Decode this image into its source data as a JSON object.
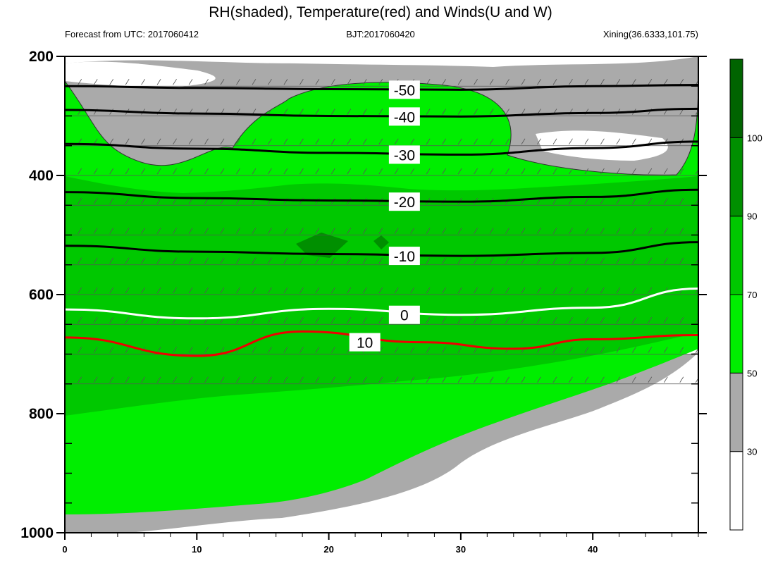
{
  "chart_data": {
    "type": "heatmap",
    "title": "RH(shaded), Temperature(red) and Winds(U and W)",
    "subtitle_left": "Forecast from UTC: 2017060412",
    "subtitle_center": "BJT:2017060420",
    "subtitle_right": "Xining(36.6333,101.75)",
    "xlabel": "",
    "ylabel": "",
    "xlim": [
      0,
      48
    ],
    "ylim": [
      1000,
      200
    ],
    "x_ticks": [
      0,
      10,
      20,
      30,
      40
    ],
    "y_ticks": [
      200,
      400,
      600,
      800,
      1000
    ],
    "colorbar": {
      "ticks": [
        30,
        50,
        70,
        90,
        100
      ],
      "levels": [
        {
          "from": 0,
          "to": 30,
          "color": "#ffffff"
        },
        {
          "from": 30,
          "to": 50,
          "color": "#aaaaaa"
        },
        {
          "from": 50,
          "to": 70,
          "color": "#00ee00"
        },
        {
          "from": 70,
          "to": 90,
          "color": "#00c800"
        },
        {
          "from": 90,
          "to": 100,
          "color": "#008f00"
        },
        {
          "from": 100,
          "to": 110,
          "color": "#006400"
        }
      ]
    },
    "temperature_isotherms": [
      {
        "value": -50,
        "color": "#000000",
        "label": "-50",
        "points": [
          [
            0,
            250
          ],
          [
            10,
            253
          ],
          [
            20,
            255
          ],
          [
            30,
            256
          ],
          [
            40,
            250
          ],
          [
            48,
            248
          ]
        ]
      },
      {
        "value": -40,
        "color": "#000000",
        "label": "-40",
        "points": [
          [
            0,
            290
          ],
          [
            10,
            296
          ],
          [
            20,
            300
          ],
          [
            30,
            301
          ],
          [
            40,
            295
          ],
          [
            48,
            288
          ]
        ]
      },
      {
        "value": -30,
        "color": "#000000",
        "label": "-30",
        "points": [
          [
            0,
            347
          ],
          [
            10,
            355
          ],
          [
            20,
            362
          ],
          [
            30,
            365
          ],
          [
            40,
            354
          ],
          [
            48,
            343
          ]
        ]
      },
      {
        "value": -20,
        "color": "#000000",
        "label": "-20",
        "points": [
          [
            0,
            428
          ],
          [
            10,
            438
          ],
          [
            20,
            442
          ],
          [
            30,
            444
          ],
          [
            40,
            436
          ],
          [
            48,
            424
          ]
        ]
      },
      {
        "value": -10,
        "color": "#000000",
        "label": "-10",
        "points": [
          [
            0,
            518
          ],
          [
            10,
            528
          ],
          [
            20,
            532
          ],
          [
            30,
            535
          ],
          [
            40,
            530
          ],
          [
            48,
            512
          ]
        ]
      },
      {
        "value": 0,
        "color": "#ffffff",
        "label": "0",
        "points": [
          [
            0,
            625
          ],
          [
            10,
            640
          ],
          [
            20,
            624
          ],
          [
            30,
            634
          ],
          [
            40,
            622
          ],
          [
            48,
            590
          ]
        ]
      },
      {
        "value": 10,
        "color": "#ee0000",
        "label": "10",
        "points": [
          [
            0,
            672
          ],
          [
            10,
            703
          ],
          [
            18,
            662
          ],
          [
            27,
            680
          ],
          [
            34,
            691
          ],
          [
            40,
            675
          ],
          [
            48,
            668
          ]
        ]
      }
    ],
    "rh_regions_description_values": {
      "rh_max_percent": 100,
      "rh_min_percent": 0
    }
  }
}
